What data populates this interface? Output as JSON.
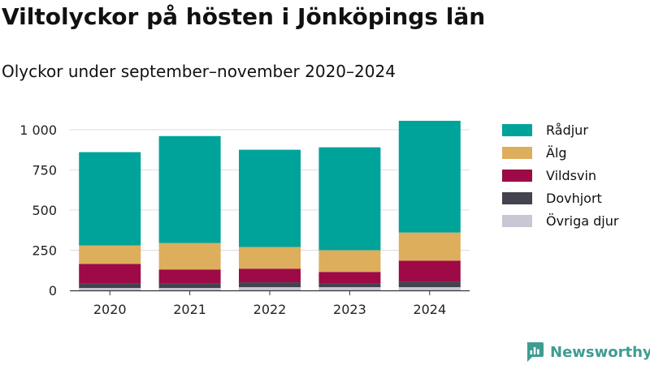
{
  "title": "Viltolyckor på hösten i Jönköpings län",
  "subtitle": "Olyckor under september–november 2020–2024",
  "brand": {
    "name": "Newsworthy",
    "icon": "newsworthy-logo-icon",
    "color": "#3f9c91"
  },
  "chart_data": {
    "type": "bar",
    "stacked": true,
    "categories": [
      "2020",
      "2021",
      "2022",
      "2023",
      "2024"
    ],
    "y_ticks": [
      0,
      250,
      500,
      750,
      1000
    ],
    "y_tick_labels": [
      "0",
      "250",
      "500",
      "750",
      "1 000"
    ],
    "ylim": [
      0,
      1100
    ],
    "grid": true,
    "legend_position": "right",
    "series": [
      {
        "name": "Övriga djur",
        "color": "#c9c7d4",
        "values": [
          15,
          15,
          20,
          20,
          20
        ]
      },
      {
        "name": "Dovhjort",
        "color": "#43434f",
        "values": [
          30,
          30,
          30,
          25,
          35
        ]
      },
      {
        "name": "Vildsvin",
        "color": "#9e0a45",
        "values": [
          120,
          85,
          85,
          70,
          130
        ]
      },
      {
        "name": "Älg",
        "color": "#ddae5c",
        "values": [
          115,
          165,
          135,
          135,
          175
        ]
      },
      {
        "name": "Rådjur",
        "color": "#00a39a",
        "values": [
          580,
          665,
          605,
          640,
          695
        ]
      }
    ]
  }
}
